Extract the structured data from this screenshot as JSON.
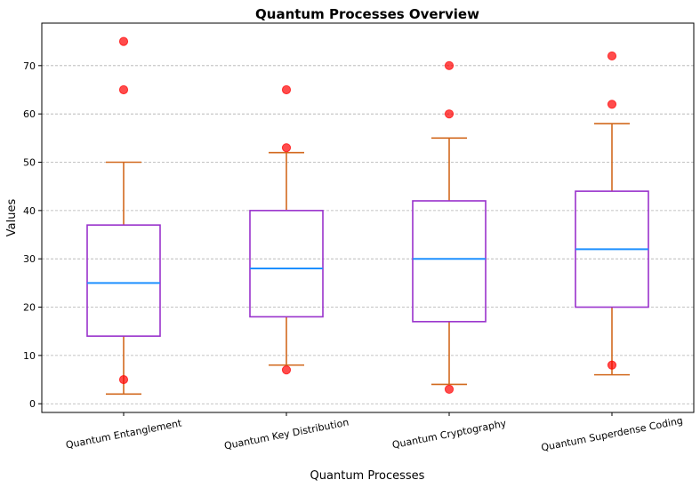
{
  "chart_data": {
    "type": "box",
    "title": "Quantum Processes Overview",
    "xlabel": "Quantum Processes",
    "ylabel": "Values",
    "ylim": [
      -1.8,
      78.8
    ],
    "yticks": [
      0,
      10,
      20,
      30,
      40,
      50,
      60,
      70
    ],
    "grid": "y-dashed",
    "categories": [
      "Quantum Entanglement",
      "Quantum Key Distribution",
      "Quantum Cryptography",
      "Quantum Superdense Coding"
    ],
    "boxes": [
      {
        "whisker_low": 2,
        "q1": 14,
        "median": 25,
        "q3": 37,
        "whisker_high": 50,
        "outliers": [
          75,
          65,
          5
        ]
      },
      {
        "whisker_low": 8,
        "q1": 18,
        "median": 28,
        "q3": 40,
        "whisker_high": 52,
        "outliers": [
          65,
          53,
          7
        ]
      },
      {
        "whisker_low": 4,
        "q1": 17,
        "median": 30,
        "q3": 42,
        "whisker_high": 55,
        "outliers": [
          70,
          60,
          3
        ]
      },
      {
        "whisker_low": 6,
        "q1": 20,
        "median": 32,
        "q3": 44,
        "whisker_high": 58,
        "outliers": [
          72,
          62,
          8
        ]
      }
    ],
    "colors": {
      "box": "#9932cc",
      "median": "#1e90ff",
      "whisker": "#d2691e",
      "outlier": "#ff0000",
      "grid": "#b0b0b0"
    }
  }
}
